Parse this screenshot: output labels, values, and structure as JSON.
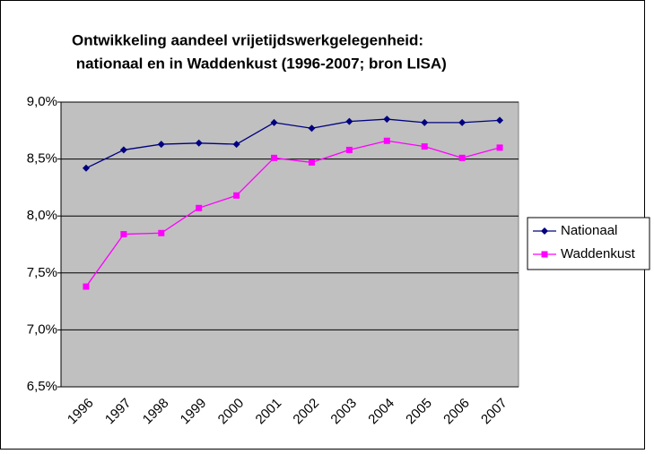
{
  "chart_data": {
    "type": "line",
    "title": [
      "Ontwikkeling aandeel vrijetijdswerkgelegenheid:",
      " nationaal en in Waddenkust (1996-2007; bron LISA)"
    ],
    "categories": [
      "1996",
      "1997",
      "1998",
      "1999",
      "2000",
      "2001",
      "2002",
      "2003",
      "2004",
      "2005",
      "2006",
      "2007"
    ],
    "series": [
      {
        "name": "Nationaal",
        "color": "#000080",
        "marker": "diamond",
        "values": [
          8.42,
          8.58,
          8.63,
          8.64,
          8.63,
          8.82,
          8.77,
          8.83,
          8.85,
          8.82,
          8.82,
          8.84
        ]
      },
      {
        "name": "Waddenkust",
        "color": "#ff00ff",
        "marker": "square",
        "values": [
          7.38,
          7.84,
          7.85,
          8.07,
          8.18,
          8.51,
          8.47,
          8.58,
          8.66,
          8.61,
          8.51,
          8.6
        ]
      }
    ],
    "ylim": [
      6.5,
      9.0
    ],
    "yticks": [
      {
        "value": 6.5,
        "label": "6,5%"
      },
      {
        "value": 7.0,
        "label": "7,0%"
      },
      {
        "value": 7.5,
        "label": "7,5%"
      },
      {
        "value": 8.0,
        "label": "8,0%"
      },
      {
        "value": 8.5,
        "label": "8,5%"
      },
      {
        "value": 9.0,
        "label": "9,0%"
      }
    ],
    "grid": true,
    "legend": "right"
  }
}
